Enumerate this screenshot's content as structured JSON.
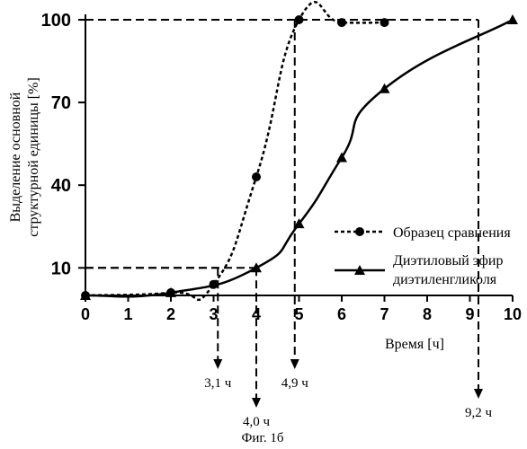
{
  "chart_data": {
    "type": "line",
    "xlabel": "Время [ч]",
    "ylabel_lines": [
      "Выделение основной",
      "структурной единицы [%]"
    ],
    "xlim": [
      0,
      10
    ],
    "ylim": [
      0,
      100
    ],
    "x_ticks": [
      0,
      1,
      2,
      3,
      4,
      5,
      6,
      7,
      8,
      9,
      10
    ],
    "y_ticks": [
      10,
      40,
      70,
      100
    ],
    "series": [
      {
        "name": "Образец сравнения",
        "marker": "circle",
        "line": "dashed",
        "points": [
          [
            0,
            0
          ],
          [
            2,
            1
          ],
          [
            3,
            4
          ],
          [
            4,
            43
          ],
          [
            5,
            100
          ],
          [
            6,
            99
          ],
          [
            7,
            99
          ]
        ]
      },
      {
        "name_lines": [
          "Диэтиловый эфир",
          "диэтиленгликоля"
        ],
        "marker": "triangle",
        "line": "solid",
        "points": [
          [
            0,
            0
          ],
          [
            2,
            1
          ],
          [
            4,
            10
          ],
          [
            5,
            26
          ],
          [
            6,
            50
          ],
          [
            7,
            75
          ],
          [
            10,
            100
          ]
        ]
      }
    ],
    "reference_lines": [
      {
        "y": 10,
        "x": 3.1,
        "label": "3,1 ч"
      },
      {
        "y": 10,
        "x": 4.0,
        "label": "4,0 ч"
      },
      {
        "y": 100,
        "x": 4.9,
        "label": "4,9 ч"
      },
      {
        "y": 100,
        "x": 9.2,
        "label": "9,2 ч"
      }
    ],
    "legend_position": "right-middle"
  },
  "caption": "Фиг. 1б"
}
